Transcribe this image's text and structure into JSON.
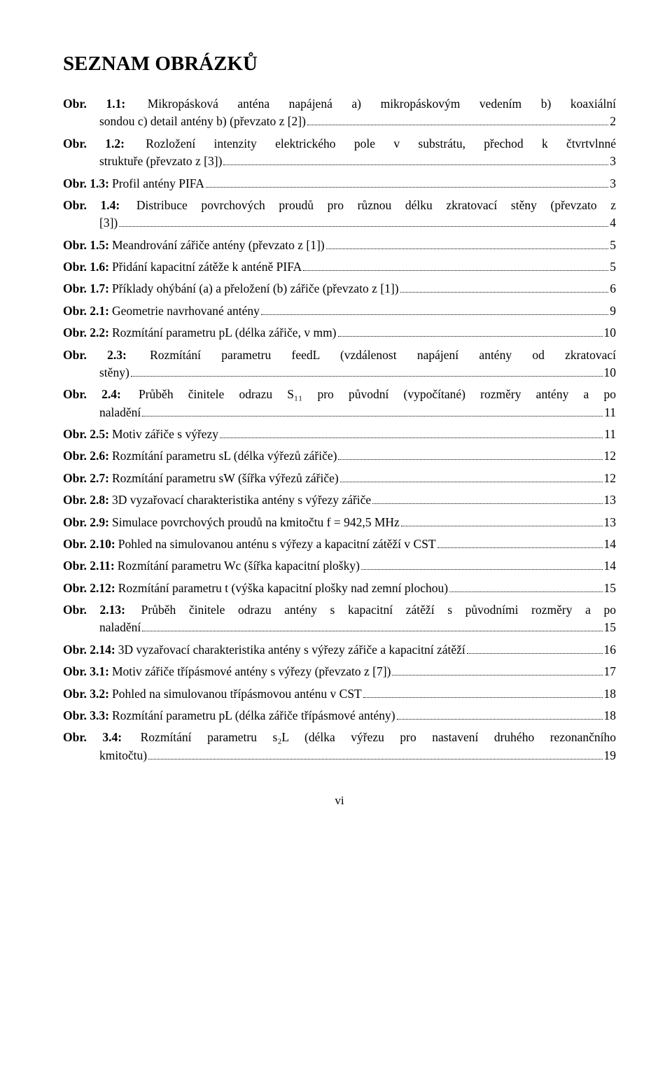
{
  "title": "SEZNAM OBRÁZKŮ",
  "footer": "vi",
  "entries": [
    {
      "label": "Obr. 1.1:",
      "lines": [
        "Mikropásková anténa napájená a) mikropáskovým vedením b) koaxiální"
      ],
      "last": "sondou c) detail antény b) (převzato z [2])",
      "page": "2",
      "hang": true
    },
    {
      "label": "Obr. 1.2:",
      "lines": [
        "Rozložení intenzity elektrického pole v substrátu, přechod k čtvrtvlnné"
      ],
      "last": "struktuře (převzato z [3])",
      "page": "3",
      "hang": true
    },
    {
      "label": "Obr. 1.3:",
      "lines": [],
      "last": "Profil antény PIFA",
      "page": "3",
      "hang": false
    },
    {
      "label": "Obr. 1.4:",
      "lines": [
        "Distribuce povrchových proudů pro různou délku zkratovací stěny (převzato z"
      ],
      "last": "[3])",
      "page": "4",
      "hang": true
    },
    {
      "label": "Obr. 1.5:",
      "lines": [],
      "last": "Meandrování zářiče antény (převzato z [1])",
      "page": "5",
      "hang": false
    },
    {
      "label": "Obr. 1.6:",
      "lines": [],
      "last": "Přidání kapacitní zátěže k anténě PIFA",
      "page": "5",
      "hang": false
    },
    {
      "label": "Obr. 1.7:",
      "lines": [],
      "last": "Příklady ohýbání (a) a přeložení (b) zářiče (převzato z [1])",
      "page": "6",
      "hang": false
    },
    {
      "label": "Obr. 2.1:",
      "lines": [],
      "last": "Geometrie navrhované antény",
      "page": "9",
      "hang": false
    },
    {
      "label": "Obr. 2.2:",
      "lines": [],
      "last": "Rozmítání parametru pL (délka zářiče, v mm)",
      "page": "10",
      "hang": false
    },
    {
      "label": "Obr. 2.3:",
      "lines": [
        "Rozmítání parametru feedL (vzdálenost napájení antény od zkratovací"
      ],
      "last": "stěny)",
      "page": "10",
      "hang": true
    },
    {
      "label": "Obr. 2.4:",
      "lines": [
        "Průběh činitele odrazu S₁₁ pro původní (vypočítané) rozměry antény a po"
      ],
      "last": "naladění",
      "page": "11",
      "hang": true
    },
    {
      "label": "Obr. 2.5:",
      "lines": [],
      "last": "Motiv zářiče s výřezy",
      "page": "11",
      "hang": false
    },
    {
      "label": "Obr. 2.6:",
      "lines": [],
      "last": "Rozmítání parametru sL (délka výřezů zářiče)",
      "page": "12",
      "hang": false
    },
    {
      "label": "Obr. 2.7:",
      "lines": [],
      "last": "Rozmítání parametru sW (šířka výřezů zářiče)",
      "page": "12",
      "hang": false
    },
    {
      "label": "Obr. 2.8:",
      "lines": [],
      "last": "3D vyzařovací charakteristika antény s výřezy zářiče",
      "page": "13",
      "hang": false
    },
    {
      "label": "Obr. 2.9:",
      "lines": [],
      "last": "Simulace povrchových proudů na kmitočtu f = 942,5 MHz",
      "page": "13",
      "hang": false
    },
    {
      "label": "Obr. 2.10:",
      "lines": [],
      "last": "Pohled na simulovanou anténu s výřezy a kapacitní zátěží v CST",
      "page": "14",
      "hang": false
    },
    {
      "label": "Obr. 2.11:",
      "lines": [],
      "last": "Rozmítání parametru Wc (šířka kapacitní plošky)",
      "page": "14",
      "hang": false
    },
    {
      "label": "Obr. 2.12:",
      "lines": [],
      "last": "Rozmítání parametru t (výška kapacitní plošky nad zemní plochou)",
      "page": "15",
      "hang": false
    },
    {
      "label": "Obr. 2.13:",
      "lines": [
        "Průběh činitele odrazu antény s kapacitní zátěží s původními rozměry a po"
      ],
      "last": "naladění",
      "page": "15",
      "hang": true
    },
    {
      "label": "Obr. 2.14:",
      "lines": [],
      "last": "3D vyzařovací charakteristika antény s výřezy zářiče a kapacitní zátěží",
      "page": "16",
      "hang": false
    },
    {
      "label": "Obr. 3.1:",
      "lines": [],
      "last": "Motiv zářiče třípásmové antény s výřezy (převzato z [7])",
      "page": "17",
      "hang": false
    },
    {
      "label": "Obr. 3.2:",
      "lines": [],
      "last": "Pohled na simulovanou třípásmovou anténu v CST",
      "page": "18",
      "hang": false
    },
    {
      "label": "Obr. 3.3:",
      "lines": [],
      "last": "Rozmítání parametru pL (délka zářiče třípásmové antény)",
      "page": "18",
      "hang": false
    },
    {
      "label": "Obr. 3.4:",
      "lines": [
        "Rozmítání parametru s₂L (délka výřezu pro nastavení druhého rezonančního"
      ],
      "last": "kmitočtu)",
      "page": "19",
      "hang": true
    }
  ]
}
